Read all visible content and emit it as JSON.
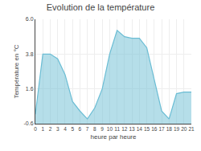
{
  "chart_data": {
    "type": "area",
    "title": "Evolution de la température",
    "xlabel": "heure par heure",
    "ylabel": "Température en °C",
    "x": [
      0,
      1,
      2,
      3,
      4,
      5,
      6,
      7,
      8,
      9,
      10,
      11,
      12,
      13,
      14,
      15,
      16,
      17,
      18,
      19,
      20,
      21
    ],
    "values": [
      0.0,
      3.8,
      3.8,
      3.5,
      2.5,
      0.8,
      0.2,
      -0.3,
      0.4,
      1.6,
      3.8,
      5.3,
      4.9,
      4.8,
      4.8,
      4.2,
      2.2,
      0.2,
      -0.3,
      1.3,
      1.4,
      1.4
    ],
    "color": "#6bbdd4",
    "xlim": [
      0,
      21
    ],
    "xticks": [
      0,
      1,
      2,
      3,
      4,
      5,
      6,
      7,
      8,
      9,
      10,
      11,
      12,
      13,
      14,
      15,
      16,
      17,
      18,
      19,
      20,
      21
    ],
    "ylim": [
      -0.6,
      6.0
    ],
    "yticks": [
      -0.6,
      1.6,
      3.8,
      {
        "value": 6.0,
        "label": "6.0"
      }
    ],
    "grid": true
  }
}
